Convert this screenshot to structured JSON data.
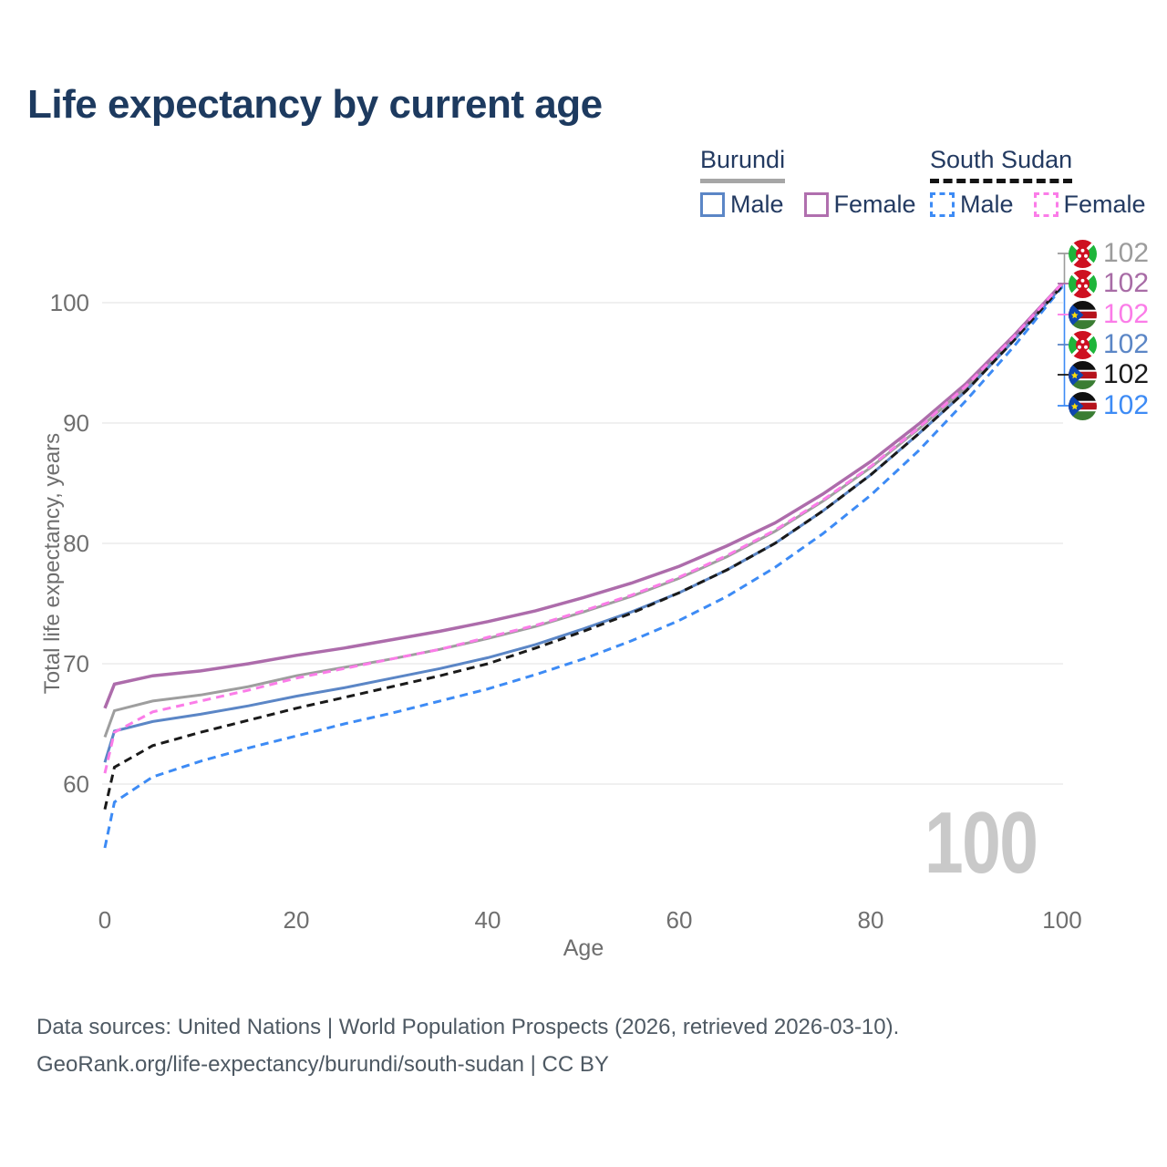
{
  "title": "Life expectancy by current age",
  "legend": {
    "groups": [
      {
        "country": "Burundi",
        "line_style": "solid",
        "underline_color": "#a6a6a6",
        "items": [
          {
            "label": "Male",
            "color": "#5b86c6"
          },
          {
            "label": "Female",
            "color": "#b06fae"
          }
        ]
      },
      {
        "country": "South Sudan",
        "line_style": "dashed",
        "underline_color": "#141414",
        "items": [
          {
            "label": "Male",
            "color": "#3d8bf5"
          },
          {
            "label": "Female",
            "color": "#fb7ce8"
          }
        ]
      }
    ]
  },
  "chart_data": {
    "type": "line",
    "title": "Life expectancy by current age",
    "xlabel": "Age",
    "ylabel": "Total life expectancy, years",
    "xticks": [
      0,
      20,
      40,
      60,
      80,
      100
    ],
    "yticks": [
      60,
      70,
      80,
      90,
      100
    ],
    "xlim": [
      0,
      100
    ],
    "ylim": [
      54,
      102
    ],
    "grid": "horizontal",
    "legend_position": "top-right",
    "x": [
      0,
      1,
      5,
      10,
      15,
      20,
      25,
      30,
      35,
      40,
      45,
      50,
      55,
      60,
      65,
      70,
      75,
      80,
      85,
      90,
      95,
      100
    ],
    "series": [
      {
        "id": "burundi-both",
        "name": "Burundi Both sexes",
        "color": "#9e9e9e",
        "dash": null,
        "width": 3,
        "values": [
          63.9,
          66.1,
          66.9,
          67.4,
          68.1,
          69.0,
          69.7,
          70.4,
          71.2,
          72.1,
          73.1,
          74.3,
          75.6,
          77.1,
          78.9,
          81.0,
          83.5,
          86.3,
          89.5,
          93.0,
          97.1,
          101.5
        ]
      },
      {
        "id": "burundi-male",
        "name": "Burundi Male",
        "color": "#5b86c6",
        "dash": null,
        "width": 3,
        "values": [
          61.8,
          64.4,
          65.2,
          65.8,
          66.5,
          67.3,
          68.0,
          68.8,
          69.6,
          70.5,
          71.6,
          72.9,
          74.3,
          75.9,
          77.8,
          80.0,
          82.7,
          85.7,
          89.1,
          92.7,
          96.9,
          101.4
        ]
      },
      {
        "id": "burundi-female",
        "name": "Burundi Female",
        "color": "#ad6cab",
        "dash": null,
        "width": 3.5,
        "values": [
          66.3,
          68.3,
          69.0,
          69.4,
          70.0,
          70.7,
          71.3,
          72.0,
          72.7,
          73.5,
          74.4,
          75.5,
          76.7,
          78.1,
          79.8,
          81.7,
          84.1,
          86.8,
          89.9,
          93.3,
          97.3,
          101.6
        ]
      },
      {
        "id": "south-sudan-male",
        "name": "South Sudan Male",
        "color": "#3d8bf5",
        "dash": "9 6",
        "width": 3,
        "values": [
          54.7,
          58.5,
          60.6,
          61.9,
          63.0,
          64.0,
          65.0,
          65.9,
          66.9,
          67.9,
          69.1,
          70.4,
          71.9,
          73.6,
          75.6,
          78.0,
          80.8,
          84.0,
          87.7,
          91.9,
          96.4,
          101.3
        ]
      },
      {
        "id": "south-sudan-both",
        "name": "South Sudan Both sexes",
        "color": "#1a1a1a",
        "dash": "9 6",
        "width": 3,
        "values": [
          57.9,
          61.4,
          63.2,
          64.3,
          65.3,
          66.3,
          67.2,
          68.1,
          69.0,
          70.0,
          71.3,
          72.7,
          74.2,
          75.9,
          77.8,
          80.0,
          82.7,
          85.7,
          89.1,
          92.7,
          96.9,
          101.4
        ]
      },
      {
        "id": "south-sudan-female",
        "name": "South Sudan Female",
        "color": "#fb7ce8",
        "dash": "9 6",
        "width": 3,
        "values": [
          60.9,
          64.3,
          66.0,
          66.9,
          67.8,
          68.8,
          69.6,
          70.4,
          71.2,
          72.2,
          73.2,
          74.4,
          75.7,
          77.2,
          79.0,
          81.1,
          83.6,
          86.4,
          89.6,
          93.1,
          97.2,
          101.6
        ]
      }
    ]
  },
  "right_labels": [
    {
      "flag": "burundi",
      "series": "Burundi Both sexes",
      "value": "102",
      "color": "#9c9c9c"
    },
    {
      "flag": "burundi",
      "series": "Burundi Female",
      "value": "102",
      "color": "#a86ca6"
    },
    {
      "flag": "south-sudan",
      "series": "South Sudan Female",
      "value": "102",
      "color": "#fb7ce8"
    },
    {
      "flag": "burundi",
      "series": "Burundi Male",
      "value": "102",
      "color": "#5b86c6"
    },
    {
      "flag": "south-sudan",
      "series": "South Sudan Both sexes",
      "value": "102",
      "color": "#1a1a1a"
    },
    {
      "flag": "south-sudan",
      "series": "South Sudan Male",
      "value": "102",
      "color": "#3d8bf5"
    }
  ],
  "watermark_current_age": "100",
  "footer": {
    "line1": "Data sources: United Nations | World Population Prospects (2026, retrieved 2026-03-10).",
    "line2": "GeoRank.org/life-expectancy/burundi/south-sudan | CC BY"
  }
}
